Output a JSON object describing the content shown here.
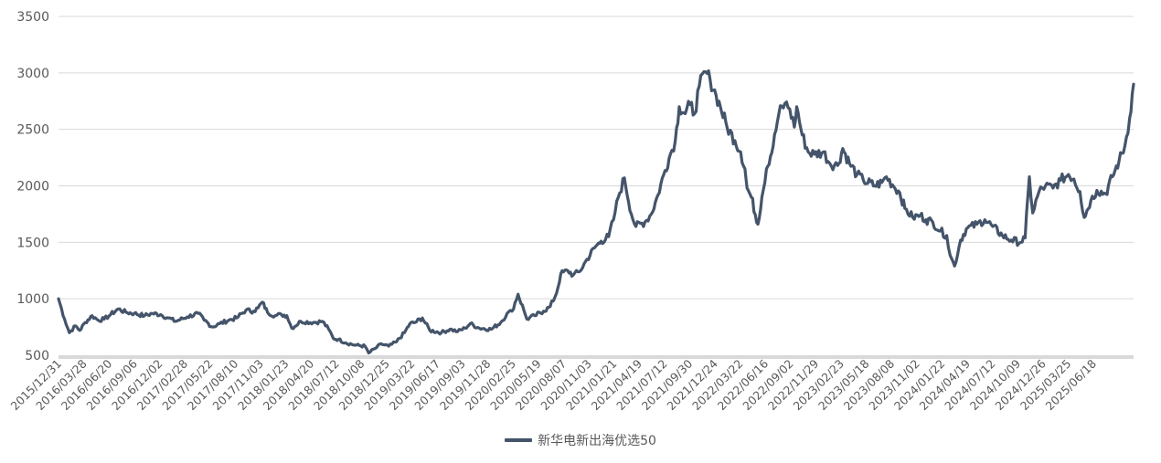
{
  "chart_data": {
    "type": "line",
    "title": "",
    "xlabel": "",
    "ylabel": "",
    "ylim": [
      500,
      3500
    ],
    "yticks": [
      500,
      1000,
      1500,
      2000,
      2500,
      3000,
      3500
    ],
    "grid": "horizontal",
    "legend_position": "bottom-center",
    "x_tick_labels": [
      "2015/12/31",
      "2016/03/28",
      "2016/06/20",
      "2016/09/06",
      "2016/12/02",
      "2017/02/28",
      "2017/05/22",
      "2017/08/10",
      "2017/11/03",
      "2018/01/23",
      "2018/04/20",
      "2018/07/12",
      "2018/10/08",
      "2018/12/25",
      "2019/03/22",
      "2019/06/17",
      "2019/09/03",
      "2019/11/28",
      "2020/02/25",
      "2020/05/19",
      "2020/08/07",
      "2020/11/03",
      "2021/01/21",
      "2021/04/19",
      "2021/07/12",
      "2021/09/30",
      "2021/12/24",
      "2022/03/22",
      "2022/06/16",
      "2022/09/02",
      "2022/11/29",
      "2023/02/23",
      "2023/05/18",
      "2023/08/08",
      "2023/11/02",
      "2024/01/22",
      "2024/04/19",
      "2024/07/12",
      "2024/10/09",
      "2024/12/26",
      "2025/03/25",
      "2025/06/18"
    ],
    "series": [
      {
        "name": "新华电新出海优选50",
        "color": "#44546A",
        "points": [
          [
            "2015/12/31",
            1000
          ],
          [
            "2016/01/20",
            820
          ],
          [
            "2016/02/05",
            700
          ],
          [
            "2016/02/25",
            760
          ],
          [
            "2016/03/10",
            720
          ],
          [
            "2016/03/28",
            790
          ],
          [
            "2016/04/20",
            850
          ],
          [
            "2016/05/10",
            810
          ],
          [
            "2016/05/30",
            820
          ],
          [
            "2016/06/20",
            860
          ],
          [
            "2016/07/15",
            910
          ],
          [
            "2016/08/10",
            880
          ],
          [
            "2016/09/06",
            870
          ],
          [
            "2016/10/10",
            850
          ],
          [
            "2016/11/05",
            870
          ],
          [
            "2016/12/02",
            860
          ],
          [
            "2016/12/28",
            830
          ],
          [
            "2017/01/20",
            800
          ],
          [
            "2017/02/28",
            840
          ],
          [
            "2017/04/05",
            870
          ],
          [
            "2017/04/25",
            810
          ],
          [
            "2017/05/22",
            750
          ],
          [
            "2017/06/15",
            780
          ],
          [
            "2017/07/15",
            810
          ],
          [
            "2017/08/10",
            830
          ],
          [
            "2017/09/10",
            900
          ],
          [
            "2017/10/05",
            890
          ],
          [
            "2017/10/20",
            920
          ],
          [
            "2017/11/03",
            970
          ],
          [
            "2017/11/20",
            880
          ],
          [
            "2017/12/15",
            850
          ],
          [
            "2018/01/05",
            860
          ],
          [
            "2018/01/23",
            850
          ],
          [
            "2018/02/08",
            740
          ],
          [
            "2018/03/10",
            800
          ],
          [
            "2018/04/20",
            790
          ],
          [
            "2018/05/20",
            800
          ],
          [
            "2018/06/10",
            730
          ],
          [
            "2018/06/25",
            650
          ],
          [
            "2018/07/12",
            640
          ],
          [
            "2018/08/05",
            610
          ],
          [
            "2018/09/05",
            590
          ],
          [
            "2018/10/08",
            580
          ],
          [
            "2018/10/20",
            520
          ],
          [
            "2018/11/10",
            560
          ],
          [
            "2018/12/01",
            600
          ],
          [
            "2018/12/25",
            580
          ],
          [
            "2019/01/20",
            620
          ],
          [
            "2019/02/15",
            700
          ],
          [
            "2019/03/05",
            780
          ],
          [
            "2019/03/22",
            790
          ],
          [
            "2019/04/15",
            830
          ],
          [
            "2019/05/10",
            720
          ],
          [
            "2019/06/17",
            700
          ],
          [
            "2019/07/15",
            730
          ],
          [
            "2019/08/10",
            710
          ],
          [
            "2019/09/03",
            740
          ],
          [
            "2019/09/20",
            780
          ],
          [
            "2019/10/20",
            740
          ],
          [
            "2019/11/28",
            730
          ],
          [
            "2019/12/30",
            790
          ],
          [
            "2020/01/20",
            870
          ],
          [
            "2020/02/05",
            890
          ],
          [
            "2020/02/25",
            1040
          ],
          [
            "2020/03/15",
            900
          ],
          [
            "2020/03/25",
            820
          ],
          [
            "2020/04/20",
            850
          ],
          [
            "2020/05/19",
            890
          ],
          [
            "2020/06/10",
            930
          ],
          [
            "2020/07/01",
            1050
          ],
          [
            "2020/07/15",
            1220
          ],
          [
            "2020/08/07",
            1250
          ],
          [
            "2020/08/25",
            1210
          ],
          [
            "2020/09/15",
            1240
          ],
          [
            "2020/10/10",
            1350
          ],
          [
            "2020/11/03",
            1450
          ],
          [
            "2020/11/25",
            1510
          ],
          [
            "2020/12/20",
            1550
          ],
          [
            "2021/01/05",
            1700
          ],
          [
            "2021/01/21",
            1900
          ],
          [
            "2021/02/10",
            2070
          ],
          [
            "2021/03/05",
            1750
          ],
          [
            "2021/03/20",
            1640
          ],
          [
            "2021/04/19",
            1680
          ],
          [
            "2021/05/10",
            1750
          ],
          [
            "2021/06/01",
            1920
          ],
          [
            "2021/06/20",
            2100
          ],
          [
            "2021/07/12",
            2280
          ],
          [
            "2021/07/28",
            2400
          ],
          [
            "2021/08/10",
            2700
          ],
          [
            "2021/08/30",
            2640
          ],
          [
            "2021/09/15",
            2720
          ],
          [
            "2021/09/30",
            2640
          ],
          [
            "2021/10/15",
            2880
          ],
          [
            "2021/11/05",
            3010
          ],
          [
            "2021/11/20",
            2940
          ],
          [
            "2021/12/10",
            2800
          ],
          [
            "2021/12/24",
            2700
          ],
          [
            "2022/01/15",
            2520
          ],
          [
            "2022/02/10",
            2400
          ],
          [
            "2022/03/01",
            2300
          ],
          [
            "2022/03/15",
            2150
          ],
          [
            "2022/03/22",
            1980
          ],
          [
            "2022/04/05",
            1900
          ],
          [
            "2022/04/27",
            1660
          ],
          [
            "2022/05/10",
            1900
          ],
          [
            "2022/05/25",
            2150
          ],
          [
            "2022/06/16",
            2350
          ],
          [
            "2022/07/05",
            2640
          ],
          [
            "2022/07/25",
            2730
          ],
          [
            "2022/08/10",
            2680
          ],
          [
            "2022/08/25",
            2520
          ],
          [
            "2022/09/02",
            2700
          ],
          [
            "2022/09/20",
            2450
          ],
          [
            "2022/10/10",
            2300
          ],
          [
            "2022/10/30",
            2280
          ],
          [
            "2022/11/29",
            2300
          ],
          [
            "2022/12/20",
            2200
          ],
          [
            "2023/01/15",
            2180
          ],
          [
            "2023/02/01",
            2330
          ],
          [
            "2023/02/23",
            2200
          ],
          [
            "2023/03/20",
            2100
          ],
          [
            "2023/04/10",
            2050
          ],
          [
            "2023/05/18",
            2000
          ],
          [
            "2023/06/10",
            2030
          ],
          [
            "2023/06/25",
            2080
          ],
          [
            "2023/07/15",
            2010
          ],
          [
            "2023/08/08",
            1940
          ],
          [
            "2023/08/25",
            1800
          ],
          [
            "2023/09/20",
            1720
          ],
          [
            "2023/10/15",
            1740
          ],
          [
            "2023/11/02",
            1700
          ],
          [
            "2023/11/25",
            1680
          ],
          [
            "2023/12/20",
            1600
          ],
          [
            "2024/01/10",
            1560
          ],
          [
            "2024/01/22",
            1380
          ],
          [
            "2024/02/05",
            1290
          ],
          [
            "2024/02/25",
            1520
          ],
          [
            "2024/03/15",
            1620
          ],
          [
            "2024/04/19",
            1660
          ],
          [
            "2024/05/15",
            1700
          ],
          [
            "2024/06/10",
            1640
          ],
          [
            "2024/07/12",
            1560
          ],
          [
            "2024/08/10",
            1520
          ],
          [
            "2024/09/10",
            1500
          ],
          [
            "2024/09/25",
            1540
          ],
          [
            "2024/10/09",
            2080
          ],
          [
            "2024/10/20",
            1760
          ],
          [
            "2024/11/10",
            1950
          ],
          [
            "2024/12/01",
            2000
          ],
          [
            "2024/12/26",
            1980
          ],
          [
            "2025/01/20",
            2050
          ],
          [
            "2025/02/15",
            2100
          ],
          [
            "2025/03/05",
            2060
          ],
          [
            "2025/03/25",
            1950
          ],
          [
            "2025/04/08",
            1720
          ],
          [
            "2025/04/30",
            1870
          ],
          [
            "2025/05/20",
            1960
          ],
          [
            "2025/06/18",
            1930
          ],
          [
            "2025/07/10",
            2080
          ],
          [
            "2025/08/01",
            2220
          ],
          [
            "2025/08/20",
            2350
          ],
          [
            "2025/09/05",
            2600
          ],
          [
            "2025/09/18",
            2900
          ]
        ]
      }
    ]
  }
}
